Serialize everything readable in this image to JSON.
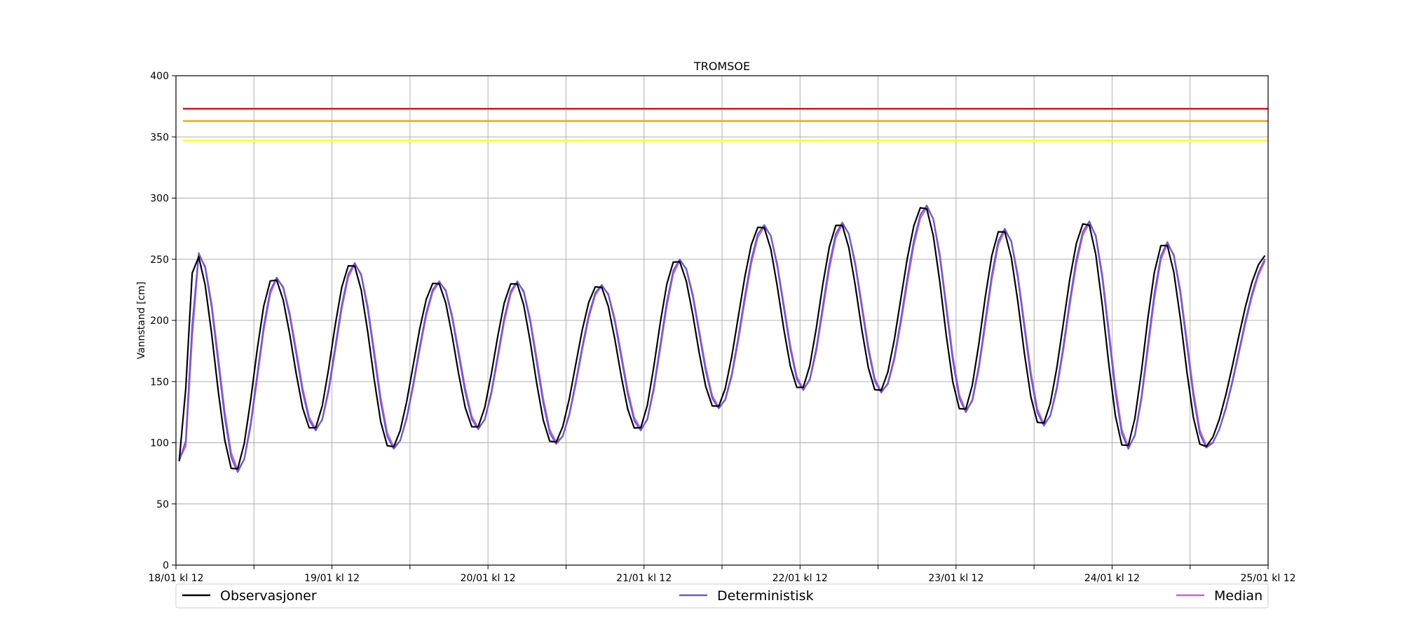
{
  "chart_data": {
    "type": "line",
    "title": "TROMSOE",
    "xlabel": "",
    "ylabel": "Vannstand [cm]",
    "ylim": [
      0,
      400
    ],
    "xlim": [
      "2024-01-18T12:00",
      "2024-01-25T12:00"
    ],
    "yticks": [
      0,
      50,
      100,
      150,
      200,
      250,
      300,
      350,
      400
    ],
    "xticks": [
      {
        "x": "2024-01-18T12:00",
        "label": "18/01 kl 12"
      },
      {
        "x": "2024-01-19T12:00",
        "label": "19/01 kl 12"
      },
      {
        "x": "2024-01-20T12:00",
        "label": "20/01 kl 12"
      },
      {
        "x": "2024-01-21T12:00",
        "label": "21/01 kl 12"
      },
      {
        "x": "2024-01-22T12:00",
        "label": "22/01 kl 12"
      },
      {
        "x": "2024-01-23T12:00",
        "label": "23/01 kl 12"
      },
      {
        "x": "2024-01-24T12:00",
        "label": "24/01 kl 12"
      },
      {
        "x": "2024-01-25T12:00",
        "label": "25/01 kl 12"
      }
    ],
    "grid": true,
    "legend_position": "bottom",
    "reference_lines": [
      {
        "y": 373,
        "color": "#dd1111"
      },
      {
        "y": 363,
        "color": "#ffa500"
      },
      {
        "y": 347,
        "color": "#ffff22"
      }
    ],
    "extrema": [
      [
        "2024-01-18T12:30",
        85
      ],
      [
        "2024-01-18T15:00",
        255
      ],
      [
        "2024-01-18T21:00",
        76
      ],
      [
        "2024-01-19T03:00",
        235
      ],
      [
        "2024-01-19T09:00",
        110
      ],
      [
        "2024-01-19T15:00",
        247
      ],
      [
        "2024-01-19T21:00",
        95
      ],
      [
        "2024-01-20T04:00",
        232
      ],
      [
        "2024-01-20T10:00",
        111
      ],
      [
        "2024-01-20T16:00",
        232
      ],
      [
        "2024-01-20T22:00",
        99
      ],
      [
        "2024-01-21T05:00",
        229
      ],
      [
        "2024-01-21T11:00",
        110
      ],
      [
        "2024-01-21T17:00",
        250
      ],
      [
        "2024-01-21T23:00",
        128
      ],
      [
        "2024-01-22T06:00",
        278
      ],
      [
        "2024-01-22T12:00",
        143
      ],
      [
        "2024-01-22T18:00",
        280
      ],
      [
        "2024-01-23T00:00",
        141
      ],
      [
        "2024-01-23T07:00",
        294
      ],
      [
        "2024-01-23T13:00",
        125
      ],
      [
        "2024-01-23T19:00",
        275
      ],
      [
        "2024-01-24T01:00",
        114
      ],
      [
        "2024-01-24T08:00",
        281
      ],
      [
        "2024-01-24T14:00",
        95
      ],
      [
        "2024-01-24T20:00",
        264
      ],
      [
        "2024-01-25T02:00",
        96
      ],
      [
        "2024-01-25T12:00",
        254
      ]
    ],
    "series": [
      {
        "name": "Observasjoner",
        "color": "#000000",
        "offset_hours": 0,
        "scale": 1.0
      },
      {
        "name": "Deterministisk",
        "color": "#6a5acd",
        "offset_hours": 0.5,
        "scale": 1.0
      },
      {
        "name": "Median",
        "color": "#c266dd",
        "offset_hours": 0.6,
        "scale": 0.985
      }
    ]
  }
}
